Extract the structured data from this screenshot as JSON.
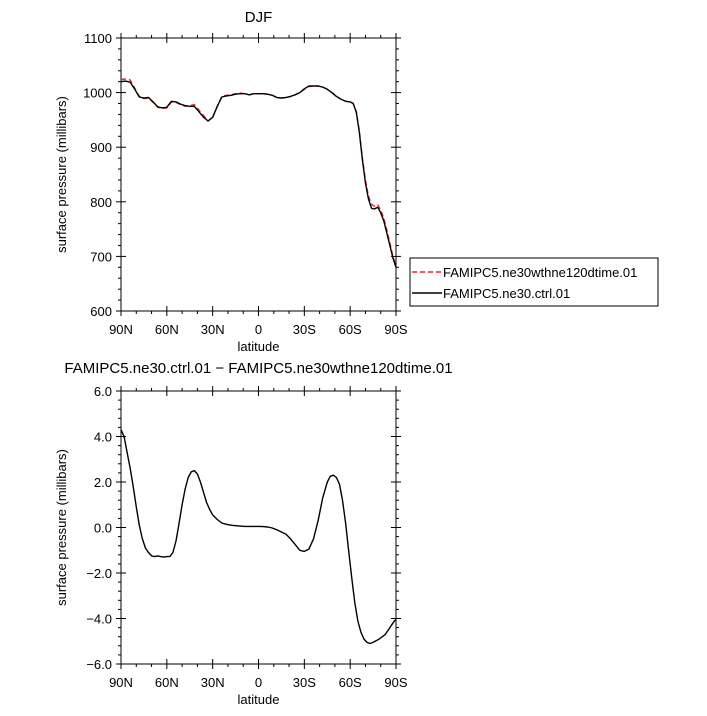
{
  "chart_data": [
    {
      "type": "line",
      "title": "DJF",
      "xlabel": "latitude",
      "ylabel": "surface pressure (millibars)",
      "xlim": [
        90,
        -90
      ],
      "ylim": [
        600,
        1100
      ],
      "x_ticks": [
        90,
        60,
        30,
        0,
        -30,
        -60,
        -90
      ],
      "x_tick_labels": [
        "90N",
        "60N",
        "30N",
        "0",
        "30S",
        "60S",
        "90S"
      ],
      "y_ticks": [
        600,
        700,
        800,
        900,
        1000,
        1100
      ],
      "y_tick_labels": [
        "600",
        "700",
        "800",
        "900",
        "1000",
        "1100"
      ],
      "legend": {
        "placement": "right"
      },
      "series": [
        {
          "name": "FAMIPC5.ne30wthne120dtime.01",
          "color": "#e8282b",
          "dash": "dashed",
          "x": [
            90,
            87,
            84,
            81,
            78,
            75,
            72,
            69,
            66,
            63,
            60,
            57,
            54,
            51,
            48,
            45,
            42,
            39,
            36,
            33,
            30,
            27,
            24,
            21,
            18,
            15,
            12,
            9,
            6,
            3,
            0,
            -3,
            -6,
            -9,
            -12,
            -15,
            -18,
            -21,
            -24,
            -27,
            -30,
            -33,
            -36,
            -39,
            -42,
            -45,
            -48,
            -51,
            -54,
            -57,
            -60,
            -62,
            -64,
            -66,
            -68,
            -70,
            -72,
            -74,
            -76,
            -78,
            -80,
            -82,
            -84,
            -86,
            -88,
            -90
          ],
          "y": [
            1024,
            1025,
            1023,
            1008,
            993,
            989,
            990,
            982,
            973,
            971,
            972,
            983,
            982,
            978,
            975,
            976,
            978,
            968,
            958,
            948,
            955,
            975,
            993,
            995,
            996,
            998,
            999,
            998,
            996,
            998,
            998,
            998,
            997,
            995,
            991,
            990,
            991,
            993,
            996,
            1000,
            1006,
            1011,
            1012,
            1012,
            1010,
            1006,
            1000,
            993,
            988,
            984,
            983,
            980,
            965,
            930,
            880,
            840,
            810,
            795,
            792,
            795,
            785,
            770,
            748,
            725,
            700,
            683
          ]
        },
        {
          "name": "FAMIPC5.ne30.ctrl.01",
          "color": "#000000",
          "dash": "solid",
          "x": [
            90,
            87,
            84,
            81,
            78,
            75,
            72,
            69,
            66,
            63,
            60,
            57,
            54,
            51,
            48,
            45,
            42,
            39,
            36,
            33,
            30,
            27,
            24,
            21,
            18,
            15,
            12,
            9,
            6,
            3,
            0,
            -3,
            -6,
            -9,
            -12,
            -15,
            -18,
            -21,
            -24,
            -27,
            -30,
            -33,
            -36,
            -39,
            -42,
            -45,
            -48,
            -51,
            -54,
            -57,
            -60,
            -62,
            -64,
            -66,
            -68,
            -70,
            -72,
            -74,
            -76,
            -78,
            -80,
            -82,
            -84,
            -86,
            -88,
            -90
          ],
          "y": [
            1020,
            1021,
            1019,
            1006,
            992,
            990,
            991,
            983,
            974,
            972,
            973,
            984,
            983,
            979,
            976,
            975,
            975,
            965,
            955,
            948,
            955,
            975,
            992,
            994,
            995,
            997,
            998,
            998,
            996,
            998,
            998,
            998,
            997,
            995,
            991,
            990,
            991,
            993,
            996,
            1000,
            1007,
            1012,
            1012,
            1012,
            1010,
            1006,
            1000,
            993,
            988,
            984,
            983,
            980,
            964,
            928,
            877,
            835,
            805,
            788,
            787,
            790,
            780,
            765,
            743,
            720,
            697,
            680
          ]
        }
      ]
    },
    {
      "type": "line",
      "title": "FAMIPC5.ne30.ctrl.01  −  FAMIPC5.ne30wthne120dtime.01",
      "xlabel": "latitude",
      "ylabel": "surface pressure (millibars)",
      "xlim": [
        90,
        -90
      ],
      "ylim": [
        -6,
        6
      ],
      "x_ticks": [
        90,
        60,
        30,
        0,
        -30,
        -60,
        -90
      ],
      "x_tick_labels": [
        "90N",
        "60N",
        "30N",
        "0",
        "30S",
        "60S",
        "90S"
      ],
      "y_ticks": [
        -6,
        -4,
        -2,
        0,
        2,
        4,
        6
      ],
      "y_tick_labels": [
        "−6.0",
        "−4.0",
        "−2.0",
        "0.0",
        "2.0",
        "4.0",
        "6.0"
      ],
      "series": [
        {
          "color": "#000000",
          "dash": "solid",
          "x": [
            90,
            88,
            86,
            84,
            82,
            80,
            78,
            76,
            74,
            72,
            70,
            68,
            66,
            64,
            62,
            60,
            58,
            56,
            54,
            52,
            50,
            48,
            46,
            44,
            42,
            40,
            38,
            36,
            34,
            32,
            30,
            27,
            24,
            21,
            18,
            15,
            12,
            9,
            6,
            3,
            0,
            -3,
            -6,
            -9,
            -12,
            -15,
            -18,
            -21,
            -24,
            -27,
            -30,
            -33,
            -36,
            -39,
            -42,
            -45,
            -47,
            -49,
            -51,
            -53,
            -55,
            -57,
            -59,
            -61,
            -63,
            -65,
            -67,
            -69,
            -71,
            -73,
            -75,
            -77,
            -79,
            -81,
            -83,
            -85,
            -87,
            -89,
            -90
          ],
          "y": [
            4.3,
            4.0,
            3.3,
            2.6,
            1.8,
            0.9,
            0.1,
            -0.5,
            -0.9,
            -1.1,
            -1.25,
            -1.28,
            -1.25,
            -1.28,
            -1.3,
            -1.28,
            -1.27,
            -1.1,
            -0.6,
            0.2,
            1.0,
            1.7,
            2.2,
            2.45,
            2.5,
            2.35,
            2.0,
            1.55,
            1.1,
            0.8,
            0.55,
            0.35,
            0.2,
            0.14,
            0.1,
            0.08,
            0.06,
            0.05,
            0.05,
            0.05,
            0.05,
            0.04,
            0.02,
            -0.02,
            -0.1,
            -0.2,
            -0.3,
            -0.5,
            -0.75,
            -1.0,
            -1.05,
            -0.95,
            -0.5,
            0.3,
            1.3,
            2.0,
            2.25,
            2.3,
            2.2,
            1.9,
            1.2,
            0.2,
            -1.0,
            -2.2,
            -3.3,
            -4.1,
            -4.6,
            -4.9,
            -5.05,
            -5.1,
            -5.05,
            -4.98,
            -4.9,
            -4.8,
            -4.7,
            -4.5,
            -4.3,
            -4.1,
            -4.05
          ]
        }
      ]
    }
  ]
}
